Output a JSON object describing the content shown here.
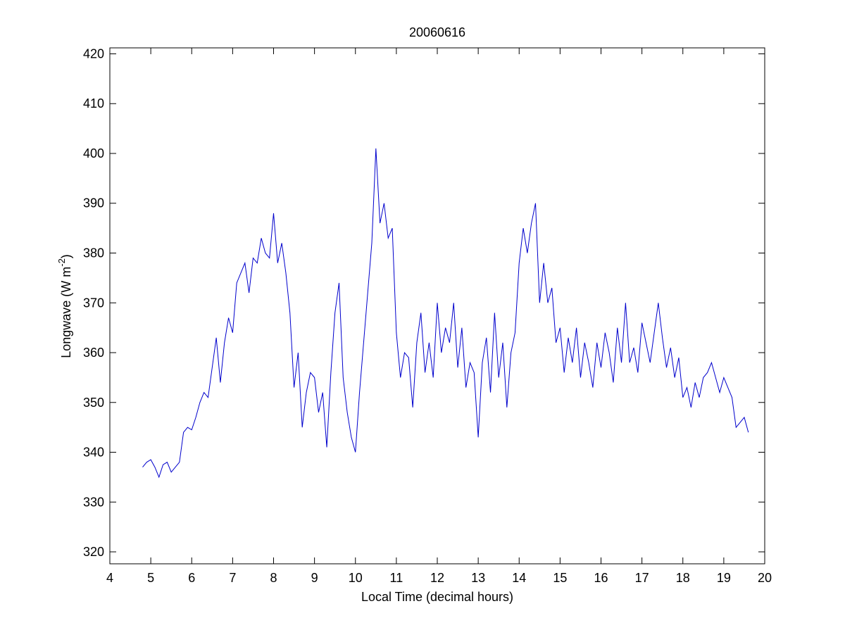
{
  "chart_data": {
    "type": "line",
    "title": "20060616",
    "xlabel": "Local Time (decimal hours)",
    "ylabel": {
      "text": "Longwave (W m",
      "superscript": "-2",
      "suffix": ")"
    },
    "color": "#0000cc",
    "x": [
      4.8,
      4.9,
      5.0,
      5.1,
      5.2,
      5.3,
      5.4,
      5.5,
      5.6,
      5.7,
      5.8,
      5.9,
      6.0,
      6.1,
      6.2,
      6.3,
      6.4,
      6.5,
      6.6,
      6.7,
      6.8,
      6.9,
      7.0,
      7.1,
      7.2,
      7.3,
      7.4,
      7.5,
      7.6,
      7.7,
      7.8,
      7.9,
      8.0,
      8.1,
      8.2,
      8.3,
      8.4,
      8.5,
      8.6,
      8.7,
      8.8,
      8.9,
      9.0,
      9.1,
      9.2,
      9.3,
      9.4,
      9.5,
      9.6,
      9.7,
      9.8,
      9.9,
      10.0,
      10.1,
      10.2,
      10.3,
      10.4,
      10.5,
      10.6,
      10.7,
      10.8,
      10.9,
      11.0,
      11.1,
      11.2,
      11.3,
      11.4,
      11.5,
      11.6,
      11.7,
      11.8,
      11.9,
      12.0,
      12.1,
      12.2,
      12.3,
      12.4,
      12.5,
      12.6,
      12.7,
      12.8,
      12.9,
      13.0,
      13.1,
      13.2,
      13.3,
      13.4,
      13.5,
      13.6,
      13.7,
      13.8,
      13.9,
      14.0,
      14.1,
      14.2,
      14.3,
      14.4,
      14.5,
      14.6,
      14.7,
      14.8,
      14.9,
      15.0,
      15.1,
      15.2,
      15.3,
      15.4,
      15.5,
      15.6,
      15.7,
      15.8,
      15.9,
      16.0,
      16.1,
      16.2,
      16.3,
      16.4,
      16.5,
      16.6,
      16.7,
      16.8,
      16.9,
      17.0,
      17.1,
      17.2,
      17.3,
      17.4,
      17.5,
      17.6,
      17.7,
      17.8,
      17.9,
      18.0,
      18.1,
      18.2,
      18.3,
      18.4,
      18.5,
      18.6,
      18.7,
      18.8,
      18.9,
      19.0,
      19.1,
      19.2,
      19.3,
      19.4,
      19.5,
      19.6
    ],
    "values": [
      337,
      338,
      338.5,
      337,
      335,
      337.5,
      338,
      336,
      337,
      338,
      344,
      345,
      344.5,
      347,
      350,
      352,
      351,
      357,
      363,
      354,
      362,
      367,
      364,
      374,
      376,
      378,
      372,
      379,
      378,
      383,
      380,
      379,
      388,
      378,
      382,
      376,
      368,
      353,
      360,
      345,
      352,
      356,
      355,
      348,
      352,
      341,
      356,
      368,
      374,
      355,
      348,
      343,
      340,
      352,
      362,
      372,
      382,
      401,
      386,
      390,
      383,
      385,
      364,
      355,
      360,
      359,
      349,
      362,
      368,
      356,
      362,
      355,
      370,
      360,
      365,
      362,
      370,
      357,
      365,
      353,
      358,
      356,
      343,
      358,
      363,
      352,
      368,
      355,
      362,
      349,
      360,
      364,
      378,
      385,
      380,
      386,
      390,
      370,
      378,
      370,
      373,
      362,
      365,
      356,
      363,
      358,
      365,
      355,
      362,
      358,
      353,
      362,
      357,
      364,
      360,
      354,
      365,
      358,
      370,
      358,
      361,
      356,
      366,
      362,
      358,
      364,
      370,
      363,
      357,
      361,
      355,
      359,
      351,
      353,
      349,
      354,
      351,
      355,
      356,
      358,
      355,
      352,
      355,
      353,
      351,
      345,
      346,
      347,
      344
    ],
    "xlim": [
      4,
      20
    ],
    "ylim": [
      317.6,
      421.2
    ],
    "xticks": [
      4,
      5,
      6,
      7,
      8,
      9,
      10,
      11,
      12,
      13,
      14,
      15,
      16,
      17,
      18,
      19,
      20
    ],
    "yticks": [
      320,
      330,
      340,
      350,
      360,
      370,
      380,
      390,
      400,
      410,
      420
    ]
  }
}
